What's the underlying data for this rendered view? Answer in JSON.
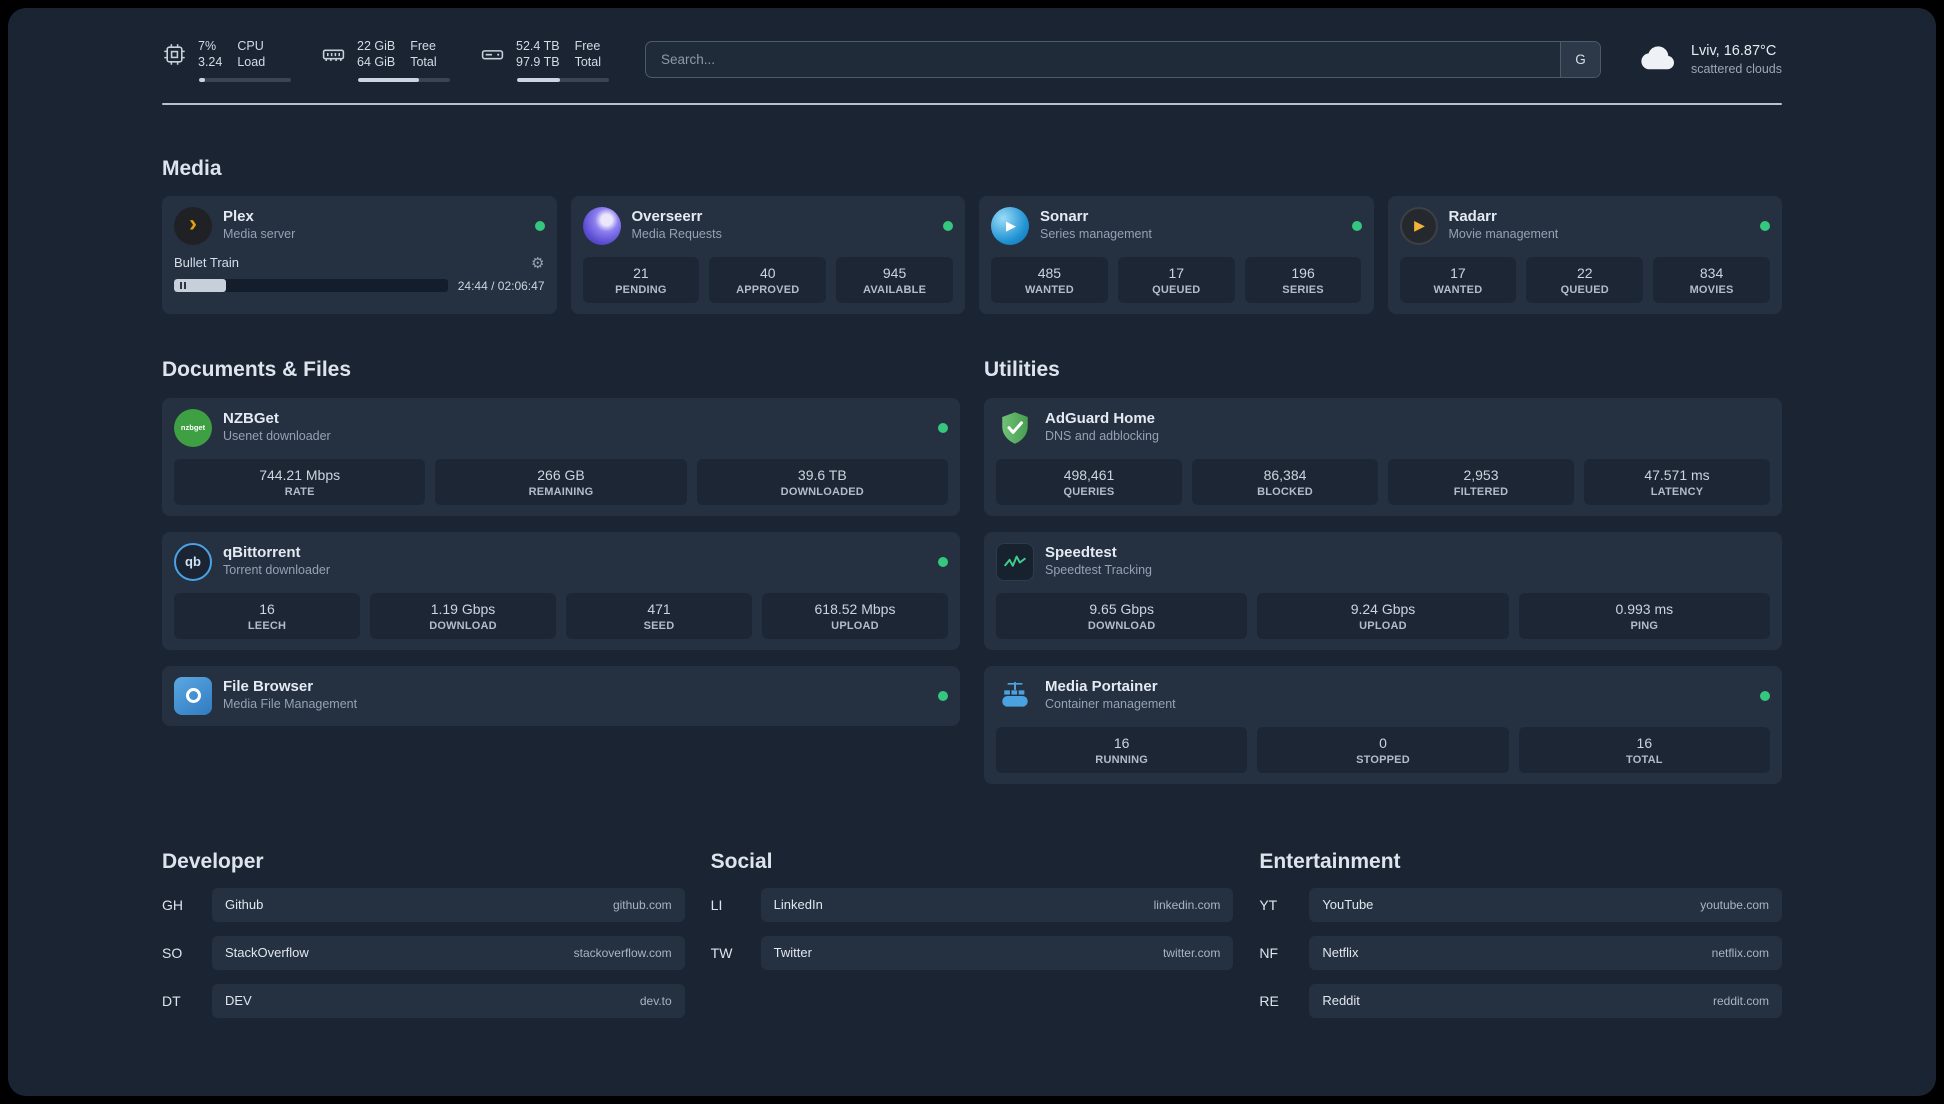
{
  "topbar": {
    "cpu": {
      "value_top": "7%",
      "value_bottom": "3.24",
      "label_top": "CPU",
      "label_bottom": "Load",
      "progress_pct": 7
    },
    "memory": {
      "value_top": "22 GiB",
      "value_bottom": "64 GiB",
      "label_top": "Free",
      "label_bottom": "Total",
      "progress_pct": 66
    },
    "disk": {
      "value_top": "52.4 TB",
      "value_bottom": "97.9 TB",
      "label_top": "Free",
      "label_bottom": "Total",
      "progress_pct": 47
    },
    "search": {
      "placeholder": "Search...",
      "button": "G"
    },
    "weather": {
      "location": "Lviv, 16.87°C",
      "condition": "scattered clouds"
    }
  },
  "icons": {
    "gear": "⚙",
    "plex_chevron": "›",
    "play": "▶",
    "nzbget_label": "nzbget",
    "qbittorrent_label": "qb"
  },
  "colors": {
    "status_online": "#35c77f",
    "plex_accent": "#e5a00d"
  },
  "sections": {
    "media": {
      "title": "Media",
      "plex": {
        "name": "Plex",
        "desc": "Media server",
        "now_playing": "Bullet Train",
        "time": "24:44 / 02:06:47",
        "progress_pct": 19
      },
      "overseerr": {
        "name": "Overseerr",
        "desc": "Media Requests",
        "stats": [
          {
            "value": "21",
            "label": "PENDING"
          },
          {
            "value": "40",
            "label": "APPROVED"
          },
          {
            "value": "945",
            "label": "AVAILABLE"
          }
        ]
      },
      "sonarr": {
        "name": "Sonarr",
        "desc": "Series management",
        "stats": [
          {
            "value": "485",
            "label": "WANTED"
          },
          {
            "value": "17",
            "label": "QUEUED"
          },
          {
            "value": "196",
            "label": "SERIES"
          }
        ]
      },
      "radarr": {
        "name": "Radarr",
        "desc": "Movie management",
        "stats": [
          {
            "value": "17",
            "label": "WANTED"
          },
          {
            "value": "22",
            "label": "QUEUED"
          },
          {
            "value": "834",
            "label": "MOVIES"
          }
        ]
      }
    },
    "documents": {
      "title": "Documents & Files",
      "nzbget": {
        "name": "NZBGet",
        "desc": "Usenet downloader",
        "stats": [
          {
            "value": "744.21 Mbps",
            "label": "RATE"
          },
          {
            "value": "266 GB",
            "label": "REMAINING"
          },
          {
            "value": "39.6 TB",
            "label": "DOWNLOADED"
          }
        ]
      },
      "qbittorrent": {
        "name": "qBittorrent",
        "desc": "Torrent downloader",
        "stats": [
          {
            "value": "16",
            "label": "LEECH"
          },
          {
            "value": "1.19 Gbps",
            "label": "DOWNLOAD"
          },
          {
            "value": "471",
            "label": "SEED"
          },
          {
            "value": "618.52 Mbps",
            "label": "UPLOAD"
          }
        ]
      },
      "filebrowser": {
        "name": "File Browser",
        "desc": "Media File Management"
      }
    },
    "utilities": {
      "title": "Utilities",
      "adguard": {
        "name": "AdGuard Home",
        "desc": "DNS and adblocking",
        "stats": [
          {
            "value": "498,461",
            "label": "QUERIES"
          },
          {
            "value": "86,384",
            "label": "BLOCKED"
          },
          {
            "value": "2,953",
            "label": "FILTERED"
          },
          {
            "value": "47.571 ms",
            "label": "LATENCY"
          }
        ]
      },
      "speedtest": {
        "name": "Speedtest",
        "desc": "Speedtest Tracking",
        "stats": [
          {
            "value": "9.65 Gbps",
            "label": "DOWNLOAD"
          },
          {
            "value": "9.24 Gbps",
            "label": "UPLOAD"
          },
          {
            "value": "0.993 ms",
            "label": "PING"
          }
        ]
      },
      "portainer": {
        "name": "Media Portainer",
        "desc": "Container management",
        "stats": [
          {
            "value": "16",
            "label": "RUNNING"
          },
          {
            "value": "0",
            "label": "STOPPED"
          },
          {
            "value": "16",
            "label": "TOTAL"
          }
        ]
      }
    },
    "bookmarks": {
      "developer": {
        "title": "Developer",
        "items": [
          {
            "abbr": "GH",
            "name": "Github",
            "url": "github.com"
          },
          {
            "abbr": "SO",
            "name": "StackOverflow",
            "url": "stackoverflow.com"
          },
          {
            "abbr": "DT",
            "name": "DEV",
            "url": "dev.to"
          }
        ]
      },
      "social": {
        "title": "Social",
        "items": [
          {
            "abbr": "LI",
            "name": "LinkedIn",
            "url": "linkedin.com"
          },
          {
            "abbr": "TW",
            "name": "Twitter",
            "url": "twitter.com"
          }
        ]
      },
      "entertainment": {
        "title": "Entertainment",
        "items": [
          {
            "abbr": "YT",
            "name": "YouTube",
            "url": "youtube.com"
          },
          {
            "abbr": "NF",
            "name": "Netflix",
            "url": "netflix.com"
          },
          {
            "abbr": "RE",
            "name": "Reddit",
            "url": "reddit.com"
          }
        ]
      }
    }
  }
}
